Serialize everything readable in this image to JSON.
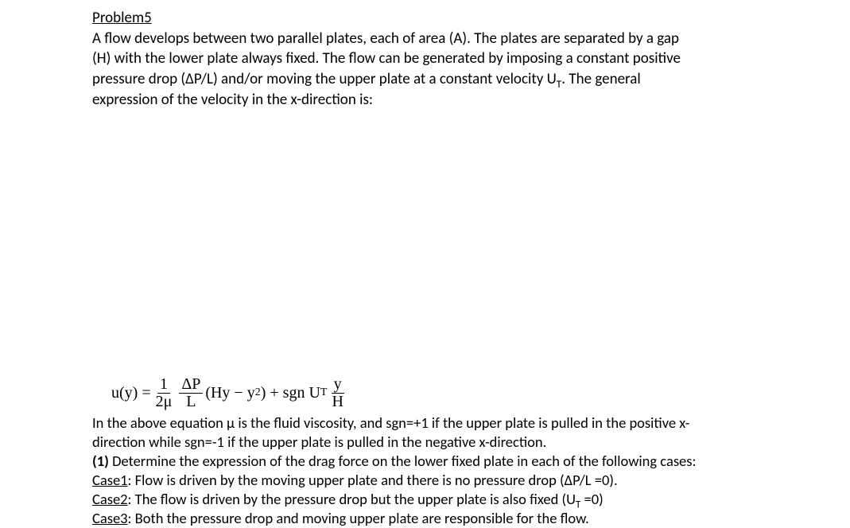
{
  "header": {
    "title": "Problem5"
  },
  "intro": {
    "line1": "A flow develops between two parallel plates, each of area (A). The plates are separated by a gap",
    "line2": "(H) with the lower plate always fixed. The flow can be generated by imposing a constant positive",
    "line3_a": "pressure drop (ΔP/L) and/or moving the upper plate at a constant velocity U",
    "line3_sub": "T",
    "line3_b": ". The general",
    "line4": "expression of the velocity in the x-direction is:"
  },
  "equation": {
    "lhs": "u(y) =",
    "frac1_num": "1",
    "frac1_den": "2μ",
    "frac2_num": "ΔP",
    "frac2_den": "L",
    "mid_a": "(Hy − y",
    "mid_sup": "2",
    "mid_b": ") + sgn U",
    "mid_sub": "T",
    "frac3_num": "y",
    "frac3_den": "H"
  },
  "bottom": {
    "line1_a": "In the above equation μ is the fluid viscosity, and sgn=+1 if the upper plate is pulled in the positive x-",
    "line2": "direction while sgn=-1 if the upper plate is pulled in the negative x-direction.",
    "line3_bold": "(1)",
    "line3_rest": " Determine the expression of the drag force on the lower fixed plate in each of the following cases:",
    "case1_label": "Case1",
    "case1_text": ": Flow is driven by the moving upper plate and there is no pressure drop (ΔP/L =0).",
    "case2_label": "Case2",
    "case2_text_a": ": The flow is driven by the pressure drop but the upper plate is also fixed (U",
    "case2_sub": "T",
    "case2_text_b": " =0)",
    "case3_label": "Case3",
    "case3_text": ": Both the pressure drop and moving upper plate are responsible for the flow."
  }
}
